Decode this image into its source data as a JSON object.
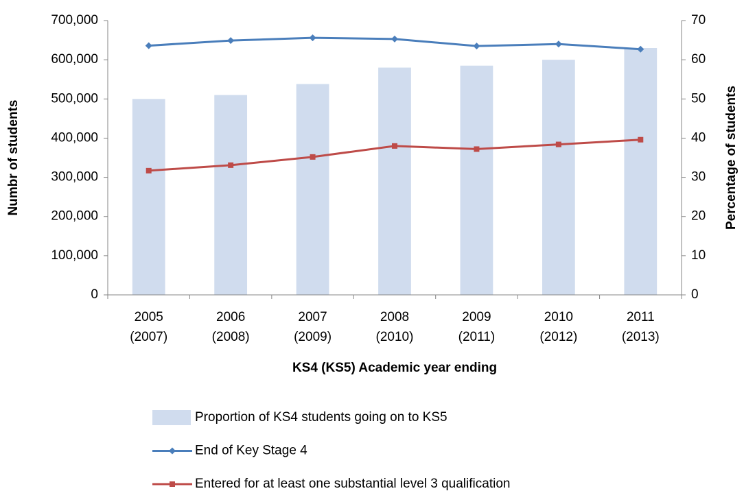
{
  "chart_data": {
    "type": "bar-line",
    "x_label": "KS4 (KS5) Academic year ending",
    "y_label": "Numbr of students",
    "y2_label": "Percentage of students",
    "categories": [
      [
        "2005",
        "(2007)"
      ],
      [
        "2006",
        "(2008)"
      ],
      [
        "2007",
        "(2009)"
      ],
      [
        "2008",
        "(2010)"
      ],
      [
        "2009",
        "(2011)"
      ],
      [
        "2010",
        "(2012)"
      ],
      [
        "2011",
        "(2013)"
      ]
    ],
    "series": [
      {
        "name": "Proportion of KS4 students going on to KS5",
        "type": "bar",
        "axis": "y2",
        "color": "#d0dcee",
        "values": [
          50,
          51,
          53.8,
          58,
          58.5,
          60,
          63
        ]
      },
      {
        "name": "End of Key Stage 4",
        "type": "line",
        "marker": "diamond",
        "color": "#4a7ebb",
        "values": [
          636000,
          649000,
          656000,
          653000,
          635000,
          640000,
          627000
        ]
      },
      {
        "name": "Entered for at least one substantial level 3 qualification",
        "type": "line",
        "marker": "square",
        "color": "#be4b48",
        "values": [
          317000,
          331000,
          352000,
          380000,
          372000,
          384000,
          396000
        ]
      }
    ],
    "ylim": [
      0,
      700000
    ],
    "yticks": [
      0,
      {
        "value": 100000,
        "label": "100,000"
      },
      {
        "value": 200000,
        "label": "200,000"
      },
      {
        "value": 300000,
        "label": "300,000"
      },
      {
        "value": 400000,
        "label": "400,000"
      },
      {
        "value": 500000,
        "label": "500,000"
      },
      {
        "value": 600000,
        "label": "600,000"
      },
      {
        "value": 700000,
        "label": "700,000"
      }
    ],
    "y2lim": [
      0,
      70
    ],
    "y2ticks": [
      0,
      10,
      20,
      30,
      40,
      50,
      60,
      70
    ],
    "legend": "bottom"
  }
}
